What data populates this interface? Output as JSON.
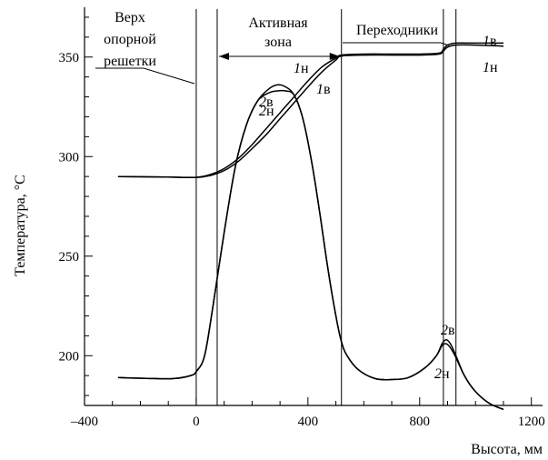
{
  "chart_data": {
    "type": "line",
    "xlabel": "Высота, мм",
    "ylabel": "Температура, °C",
    "xlim": [
      -400,
      1240
    ],
    "ylim": [
      175,
      375
    ],
    "xticks": [
      -400,
      0,
      400,
      800,
      1200
    ],
    "xtick_labels": [
      "–400",
      "0",
      "400",
      "800",
      "1200"
    ],
    "yticks": [
      200,
      250,
      300,
      350
    ],
    "ytick_labels": [
      "200",
      "250",
      "300",
      "350"
    ],
    "grid": false,
    "vlines": [
      0,
      75,
      520,
      885,
      930
    ],
    "regions": [
      {
        "label_lines": [
          "Верх",
          "опорной",
          "решетки"
        ]
      },
      {
        "label_lines": [
          "Активная",
          "зона"
        ]
      },
      {
        "label_lines": [
          "Переходники"
        ]
      }
    ],
    "series": [
      {
        "name": "1в",
        "x": [
          -280,
          -100,
          0,
          50,
          100,
          150,
          200,
          250,
          300,
          350,
          400,
          450,
          500,
          520,
          600,
          700,
          800,
          870,
          885,
          900,
          930,
          1000,
          1100
        ],
        "y": [
          290,
          289.7,
          289.6,
          291,
          294,
          299,
          306,
          314,
          322,
          330,
          338,
          345,
          349.5,
          351,
          351.5,
          351.5,
          351.5,
          352,
          354,
          356,
          357,
          357,
          357
        ]
      },
      {
        "name": "1н",
        "x": [
          -280,
          -100,
          0,
          50,
          100,
          150,
          200,
          250,
          300,
          350,
          400,
          450,
          500,
          520,
          600,
          700,
          800,
          870,
          885,
          900,
          930,
          1000,
          1100
        ],
        "y": [
          290,
          289.7,
          289.5,
          290.5,
          293,
          297.5,
          304,
          311,
          319,
          327,
          335,
          342.5,
          348.5,
          350.5,
          351,
          351,
          351,
          351.5,
          353,
          355,
          356,
          356,
          355.5
        ]
      },
      {
        "name": "2в",
        "x": [
          -280,
          -150,
          -80,
          -20,
          0,
          30,
          60,
          100,
          140,
          180,
          220,
          260,
          290,
          320,
          350,
          380,
          410,
          440,
          470,
          500,
          520,
          540,
          580,
          640,
          700,
          760,
          820,
          860,
          880,
          895,
          910,
          930,
          960,
          1000,
          1050,
          1100
        ],
        "y": [
          189,
          188.5,
          188.5,
          190,
          192,
          200,
          225,
          262,
          295,
          316,
          328,
          334,
          336,
          335,
          331,
          320,
          300,
          274,
          245,
          220,
          207,
          200,
          193,
          188.5,
          188,
          189,
          194,
          200,
          206,
          208,
          206,
          200,
          190,
          182,
          176,
          173
        ]
      },
      {
        "name": "2н",
        "x": [
          -280,
          -150,
          -80,
          -20,
          0,
          30,
          60,
          100,
          140,
          180,
          220,
          260,
          290,
          320,
          350,
          380,
          410,
          440,
          470,
          500,
          520,
          540,
          580,
          640,
          700,
          760,
          820,
          860,
          880,
          895,
          910,
          930,
          960,
          1000,
          1050,
          1100
        ],
        "y": [
          189,
          188.5,
          188.5,
          190,
          192,
          200,
          225,
          262,
          295,
          316,
          328,
          332,
          333,
          333,
          331,
          320,
          300,
          274,
          245,
          220,
          207,
          200,
          193,
          188.5,
          188,
          189,
          194,
          200,
          205,
          206,
          204,
          199,
          190,
          182,
          176,
          173
        ]
      }
    ],
    "curve_labels": [
      {
        "num": "2",
        "sub": "в"
      },
      {
        "num": "2",
        "sub": "н"
      },
      {
        "num": "1",
        "sub": "н"
      },
      {
        "num": "1",
        "sub": "в"
      },
      {
        "num": "1",
        "sub": "в"
      },
      {
        "num": "1",
        "sub": "н"
      },
      {
        "num": "2",
        "sub": "в"
      },
      {
        "num": "2",
        "sub": "н"
      }
    ]
  }
}
